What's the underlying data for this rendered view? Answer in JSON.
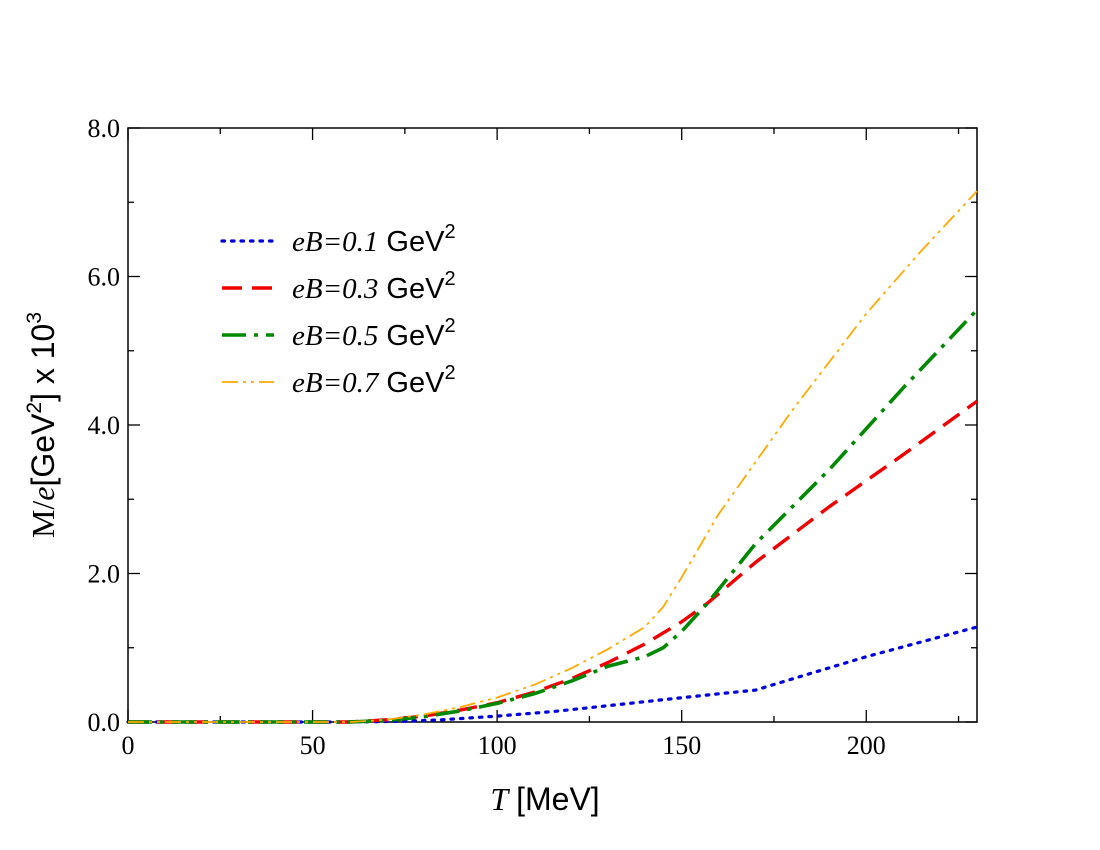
{
  "chart_data": {
    "type": "line",
    "title": "",
    "xlabel": {
      "symbol": "T",
      "unit": "[MeV]"
    },
    "ylabel": {
      "prefix": "M/",
      "symbol": "e",
      "unit_open": "[GeV",
      "unit_exp": "2",
      "unit_close": "] x 10",
      "scale_exp": "3"
    },
    "xlim": [
      0,
      230
    ],
    "ylim": [
      0,
      8
    ],
    "x_ticks": [
      0,
      50,
      100,
      150,
      200
    ],
    "x_tick_labels": [
      "0",
      "50",
      "100",
      "150",
      "200"
    ],
    "y_ticks": [
      0,
      2,
      4,
      6,
      8
    ],
    "y_tick_labels": [
      "0.0",
      "2.0",
      "4.0",
      "6.0",
      "8.0"
    ],
    "grid": false,
    "legend_position": "top-left",
    "legend_unit": "GeV",
    "legend_unit_exp": "2",
    "series": [
      {
        "name": "eB=0.1",
        "color": "#0000dd",
        "style": "dotted",
        "x": [
          0,
          60,
          75,
          85,
          100,
          115,
          130,
          145,
          160,
          170,
          180,
          200,
          230
        ],
        "y": [
          0,
          0,
          0.01,
          0.03,
          0.08,
          0.14,
          0.22,
          0.3,
          0.38,
          0.43,
          0.58,
          0.88,
          1.28
        ]
      },
      {
        "name": "eB=0.3",
        "color": "#ee0000",
        "style": "dashed",
        "x": [
          0,
          60,
          70,
          80,
          90,
          100,
          110,
          120,
          130,
          140,
          150,
          157,
          170,
          190,
          210,
          230
        ],
        "y": [
          0,
          0,
          0.03,
          0.08,
          0.16,
          0.26,
          0.4,
          0.58,
          0.8,
          1.05,
          1.35,
          1.6,
          2.15,
          2.9,
          3.6,
          4.32
        ]
      },
      {
        "name": "eB=0.5",
        "color": "#008800",
        "style": "dashdot",
        "x": [
          0,
          60,
          70,
          80,
          90,
          100,
          110,
          120,
          130,
          140,
          145,
          150,
          157,
          170,
          190,
          210,
          230
        ],
        "y": [
          0,
          0,
          0.02,
          0.07,
          0.15,
          0.25,
          0.38,
          0.55,
          0.75,
          0.88,
          1.0,
          1.22,
          1.6,
          2.4,
          3.4,
          4.5,
          5.55
        ]
      },
      {
        "name": "eB=0.7",
        "color": "#ffaa00",
        "style": "dashdotdot",
        "x": [
          0,
          60,
          70,
          80,
          90,
          100,
          110,
          120,
          130,
          140,
          145,
          150,
          160,
          180,
          200,
          215,
          230
        ],
        "y": [
          0,
          0,
          0.03,
          0.1,
          0.2,
          0.33,
          0.5,
          0.72,
          0.98,
          1.28,
          1.55,
          1.95,
          2.8,
          4.2,
          5.5,
          6.35,
          7.15
        ]
      }
    ]
  }
}
